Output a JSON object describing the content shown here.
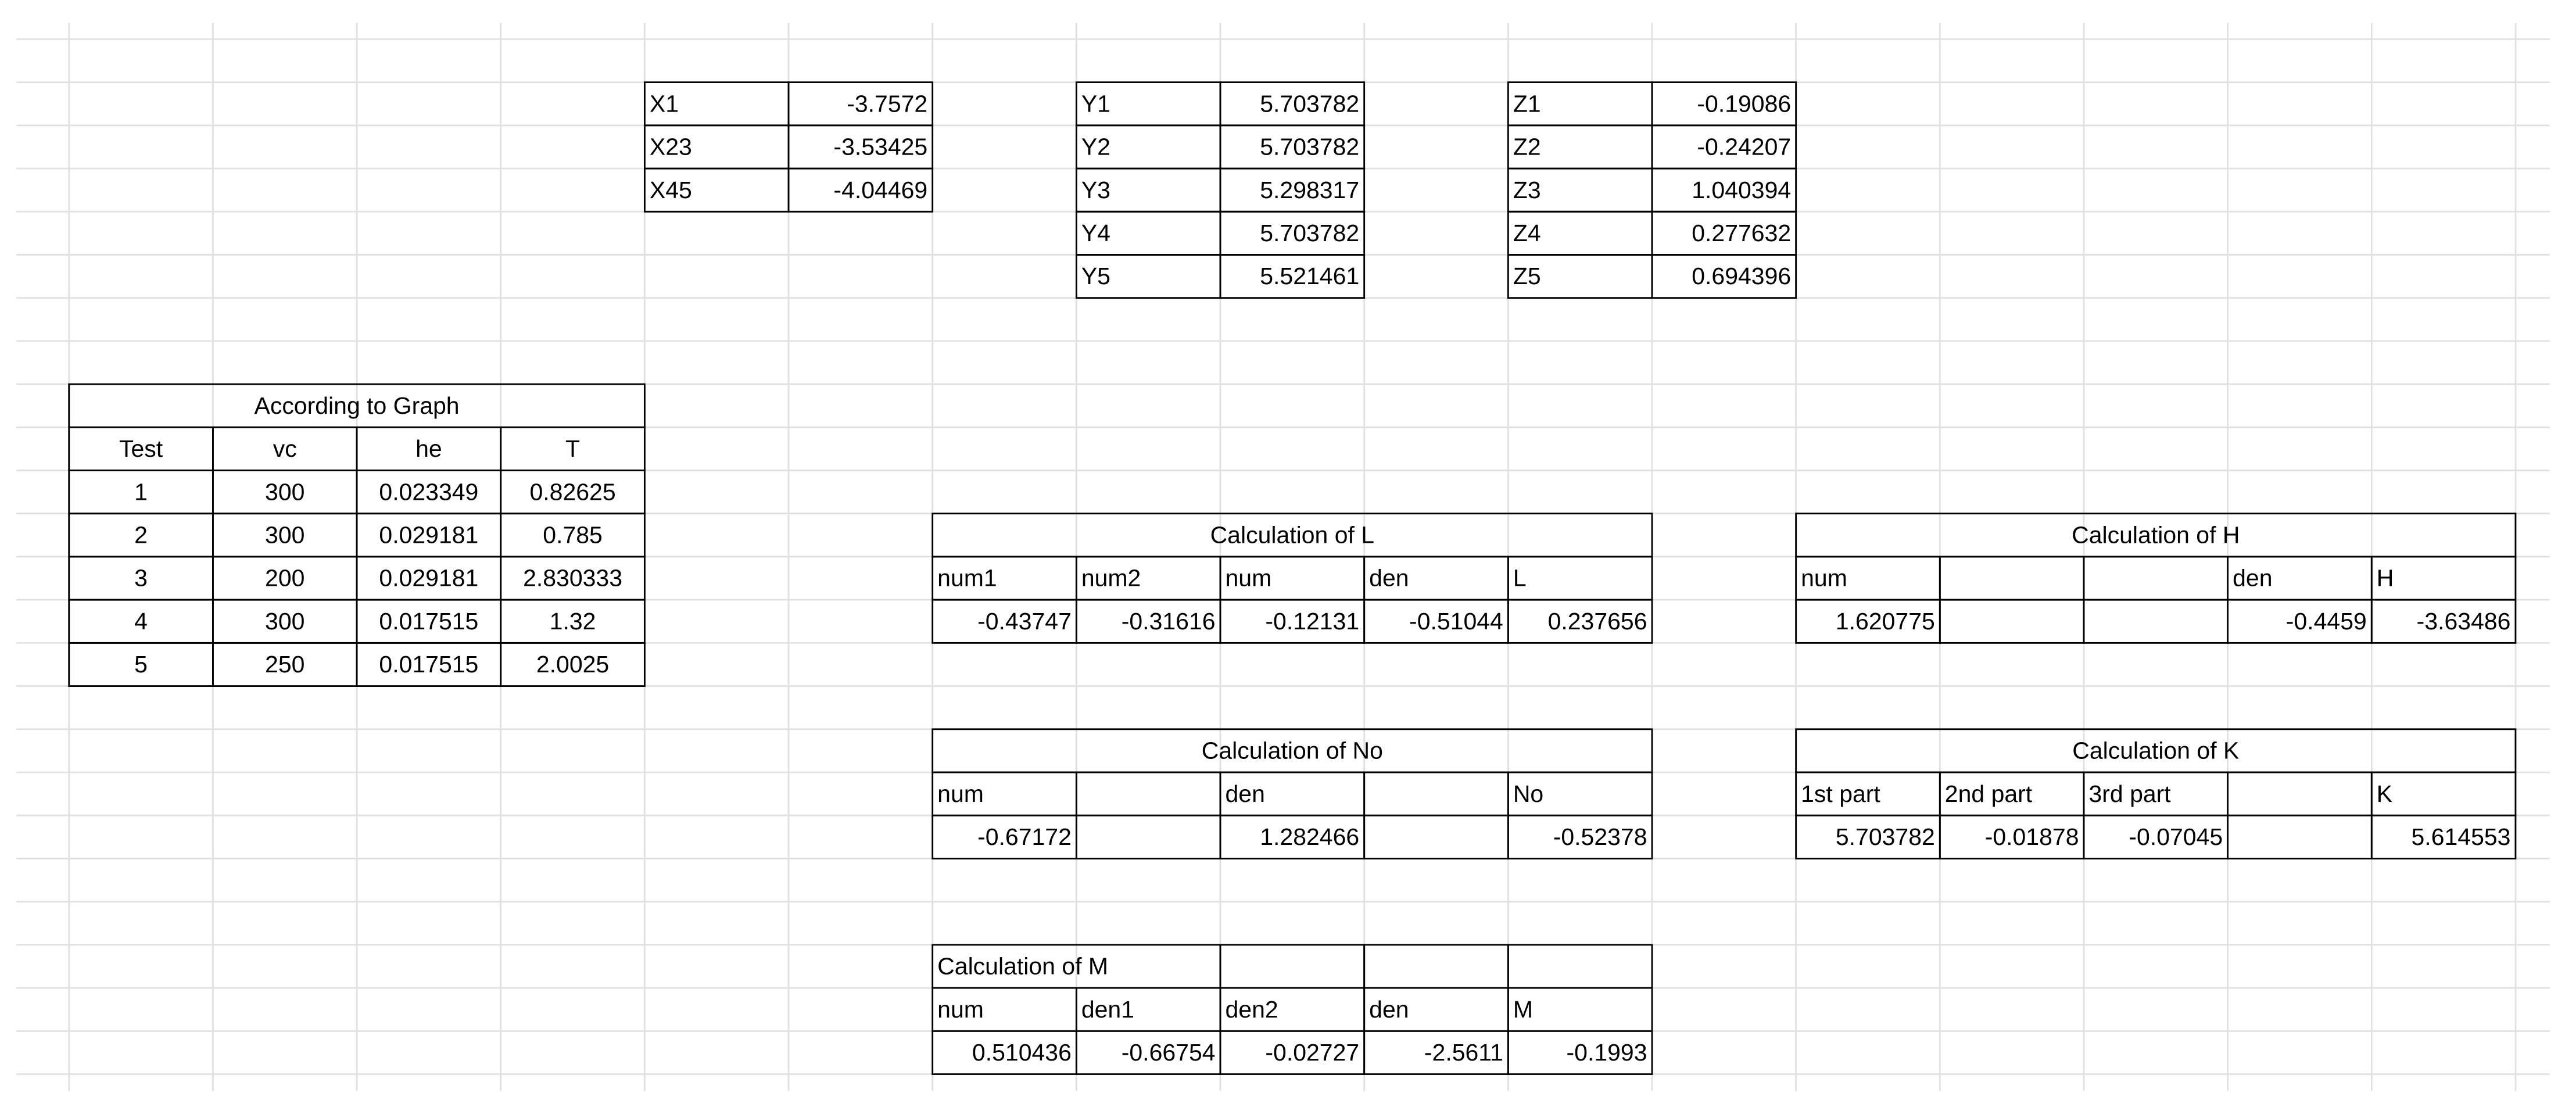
{
  "tables": [
    {
      "rows": [
        [
          "X1",
          "-3.7572"
        ],
        [
          "X23",
          "-3.53425"
        ],
        [
          "X45",
          "-4.04469"
        ]
      ]
    },
    {
      "rows": [
        [
          "Y1",
          "5.703782"
        ],
        [
          "Y2",
          "5.703782"
        ],
        [
          "Y3",
          "5.298317"
        ],
        [
          "Y4",
          "5.703782"
        ],
        [
          "Y5",
          "5.521461"
        ]
      ]
    },
    {
      "rows": [
        [
          "Z1",
          "-0.19086"
        ],
        [
          "Z2",
          "-0.24207"
        ],
        [
          "Z3",
          "1.040394"
        ],
        [
          "Z4",
          "0.277632"
        ],
        [
          "Z5",
          "0.694396"
        ]
      ]
    },
    {
      "title": "According to Graph",
      "header": [
        "Test",
        "vc",
        "he",
        "T"
      ],
      "rows": [
        [
          "1",
          "300",
          "0.023349",
          "0.82625"
        ],
        [
          "2",
          "300",
          "0.029181",
          "0.785"
        ],
        [
          "3",
          "200",
          "0.029181",
          "2.830333"
        ],
        [
          "4",
          "300",
          "0.017515",
          "1.32"
        ],
        [
          "5",
          "250",
          "0.017515",
          "2.0025"
        ]
      ]
    },
    {
      "title": "Calculation of L",
      "header": [
        "num1",
        "num2",
        "num",
        "den",
        "L"
      ],
      "rows": [
        [
          "-0.43747",
          "-0.31616",
          "-0.12131",
          "-0.51044",
          "0.237656"
        ]
      ]
    },
    {
      "title": "Calculation of H",
      "header": [
        "num",
        null,
        null,
        "den",
        "H"
      ],
      "rows": [
        [
          "1.620775",
          null,
          null,
          "-0.4459",
          "-3.63486"
        ]
      ]
    },
    {
      "title": "Calculation of No",
      "header": [
        "num",
        null,
        "den",
        null,
        "No"
      ],
      "rows": [
        [
          "-0.67172",
          null,
          "1.282466",
          null,
          "-0.52378"
        ]
      ]
    },
    {
      "title": "Calculation of K",
      "header": [
        "1st part",
        "2nd part",
        "3rd part",
        null,
        "K"
      ],
      "rows": [
        [
          "5.703782",
          "-0.01878",
          "-0.07045",
          null,
          "5.614553"
        ]
      ]
    },
    {
      "title": "Calculation of M",
      "header": [
        "num",
        "den1",
        "den2",
        "den",
        "M"
      ],
      "rows": [
        [
          "0.510436",
          "-0.66754",
          "-0.02727",
          "-2.5611",
          "-0.1993"
        ]
      ]
    }
  ]
}
